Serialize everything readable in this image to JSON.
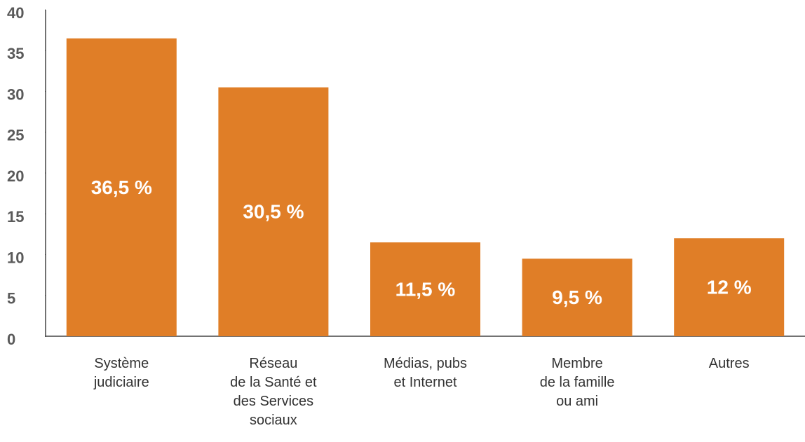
{
  "chart_data": {
    "type": "bar",
    "categories": [
      "Système\njudiciaire",
      "Réseau\nde la Santé et\ndes Services\nsociaux",
      "Médias, pubs\net Internet",
      "Membre\nde la famille\nou ami",
      "Autres"
    ],
    "values": [
      36.5,
      30.5,
      11.5,
      9.5,
      12
    ],
    "value_labels": [
      "36,5 %",
      "30,5 %",
      "11,5 %",
      "9,5 %",
      "12 %"
    ],
    "color": "#e07e27",
    "ylim": [
      0,
      40
    ],
    "yticks": [
      0,
      5,
      10,
      15,
      20,
      25,
      30,
      35,
      40
    ]
  }
}
